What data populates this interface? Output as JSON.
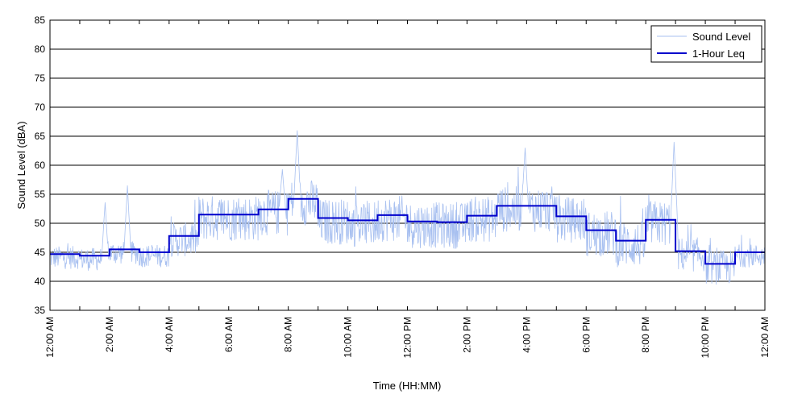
{
  "chart_data": {
    "type": "line",
    "xlabel": "Time (HH:MM)",
    "ylabel": "Sound Level (dBA)",
    "ylim": [
      35,
      85
    ],
    "y_ticks": [
      35,
      40,
      45,
      50,
      55,
      60,
      65,
      70,
      75,
      80,
      85
    ],
    "xlim_hours": [
      0,
      24
    ],
    "x_ticks": [
      {
        "hour": 0,
        "label": "12:00 AM"
      },
      {
        "hour": 2,
        "label": "2:00 AM"
      },
      {
        "hour": 4,
        "label": "4:00 AM"
      },
      {
        "hour": 6,
        "label": "6:00 AM"
      },
      {
        "hour": 8,
        "label": "8:00 AM"
      },
      {
        "hour": 10,
        "label": "10:00 AM"
      },
      {
        "hour": 12,
        "label": "12:00 PM"
      },
      {
        "hour": 14,
        "label": "2:00 PM"
      },
      {
        "hour": 16,
        "label": "4:00 PM"
      },
      {
        "hour": 18,
        "label": "6:00 PM"
      },
      {
        "hour": 20,
        "label": "8:00 PM"
      },
      {
        "hour": 22,
        "label": "10:00 PM"
      },
      {
        "hour": 24,
        "label": "12:00 AM"
      }
    ],
    "grid": "horizontal",
    "legend_position": "top-right",
    "series": [
      {
        "name": "Sound Level",
        "color": "#a8c0f0",
        "style": "thin-noisy",
        "noise_amplitude_dBA": [
          2,
          2,
          2,
          2,
          3,
          4,
          4,
          4,
          4,
          4,
          4,
          4,
          4,
          4,
          4,
          4,
          4,
          4,
          4,
          4,
          4,
          3,
          3,
          2
        ]
      },
      {
        "name": "1-Hour Leq",
        "color": "#0000cc",
        "style": "step",
        "hours": [
          0,
          1,
          2,
          3,
          4,
          5,
          6,
          7,
          8,
          9,
          10,
          11,
          12,
          13,
          14,
          15,
          16,
          17,
          18,
          19,
          20,
          21,
          22,
          23
        ],
        "values": [
          44.7,
          44.4,
          45.5,
          45.0,
          47.8,
          51.5,
          51.5,
          52.4,
          54.2,
          50.9,
          50.5,
          51.4,
          50.3,
          50.2,
          51.3,
          53.0,
          53.0,
          51.2,
          48.8,
          47.0,
          50.6,
          45.2,
          43.0,
          45.0
        ]
      }
    ],
    "annotations": [
      {
        "hour": 8.3,
        "peak_dBA": 66
      },
      {
        "hour": 20.95,
        "peak_dBA": 64
      },
      {
        "hour": 15.95,
        "peak_dBA": 63
      },
      {
        "hour": 2.6,
        "peak_dBA": 56.5
      },
      {
        "hour": 7.8,
        "peak_dBA": 59.3
      },
      {
        "hour": 1.85,
        "peak_dBA": 53.6
      }
    ]
  }
}
